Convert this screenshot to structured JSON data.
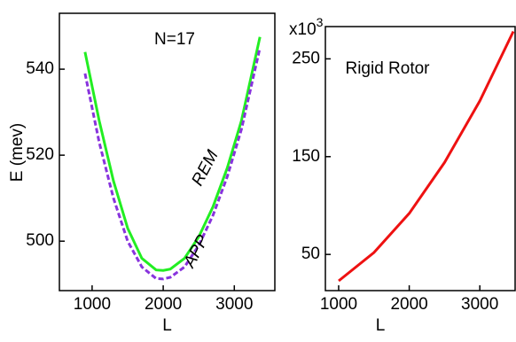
{
  "chart_data": [
    {
      "type": "line",
      "title": "N=17",
      "x_label": "L",
      "y_label": "E  (mev)",
      "xlim": [
        540,
        3570
      ],
      "ylim": [
        488.5,
        553
      ],
      "xticks": [
        1000,
        2000,
        3000
      ],
      "yticks": [
        500,
        520,
        540
      ],
      "x": [
        900,
        1100,
        1300,
        1500,
        1700,
        1900,
        2000,
        2100,
        2300,
        2500,
        2700,
        2900,
        3100,
        3360
      ],
      "series": [
        {
          "name": "REM",
          "color": "#22ee22",
          "style": "solid",
          "values": [
            544,
            528,
            514,
            503,
            496,
            493.3,
            493.2,
            493.5,
            496,
            501,
            508,
            517,
            528,
            547.5
          ]
        },
        {
          "name": "APP",
          "color": "#8833dd",
          "style": "dashed",
          "values": [
            539,
            523,
            510,
            500,
            494,
            491.3,
            491.2,
            491.6,
            494,
            499,
            506,
            515,
            526,
            545
          ]
        }
      ]
    },
    {
      "type": "line",
      "title": "Rigid Rotor",
      "x_label": "L",
      "y_multiplier": {
        "base": "x10",
        "exponent": "3"
      },
      "xlim": [
        812,
        3500
      ],
      "ylim": [
        13,
        283
      ],
      "xticks": [
        1000,
        2000,
        3000
      ],
      "yticks": [
        50,
        150,
        250
      ],
      "x": [
        1000,
        1500,
        2000,
        2500,
        3000,
        3475
      ],
      "series": [
        {
          "name": "Rigid Rotor",
          "color": "#ee1111",
          "style": "solid",
          "values": [
            23,
            52,
            92,
            144,
            207,
            278
          ]
        }
      ]
    }
  ]
}
